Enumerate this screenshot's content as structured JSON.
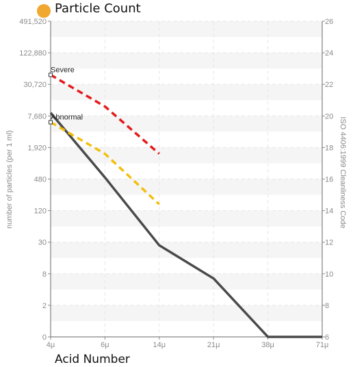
{
  "header": {
    "title": "Particle Count",
    "marker_color": "#f0a830"
  },
  "footer": {
    "x_title": "Acid Number"
  },
  "chart_data": {
    "type": "line",
    "title": "Particle Count",
    "xlabel": "Acid Number",
    "ylabel": "number of particles (per 1 ml)",
    "y2label": "ISO 4406:1999 Cleanliness Code",
    "categories": [
      "4μ",
      "6μ",
      "14μ",
      "21μ",
      "38μ",
      "71μ"
    ],
    "y_ticks": [
      "0",
      "2",
      "8",
      "30",
      "120",
      "480",
      "1,920",
      "7,680",
      "30,720",
      "122,880",
      "491,520"
    ],
    "y2_ticks": [
      "6",
      "8",
      "10",
      "12",
      "14",
      "16",
      "18",
      "20",
      "22",
      "24",
      "26"
    ],
    "y2lim": [
      6,
      26
    ],
    "grid": true,
    "series": [
      {
        "color": "#4a4a4a",
        "style": "solid",
        "code_values": [
          20.2,
          16.1,
          11.8,
          9.7,
          6,
          6
        ]
      },
      {
        "color": "#e31b1b",
        "style": "dashed",
        "code_values": [
          22.6,
          20.6,
          17.6
        ]
      },
      {
        "color": "#f2bf0c",
        "style": "dashed",
        "code_values": [
          19.6,
          17.6,
          14.4
        ]
      }
    ],
    "annotations": [
      {
        "text": "Severe",
        "category": "4μ",
        "code_value": 22.6
      },
      {
        "text": "Abnormal",
        "category": "4μ",
        "code_value": 19.6
      }
    ]
  }
}
